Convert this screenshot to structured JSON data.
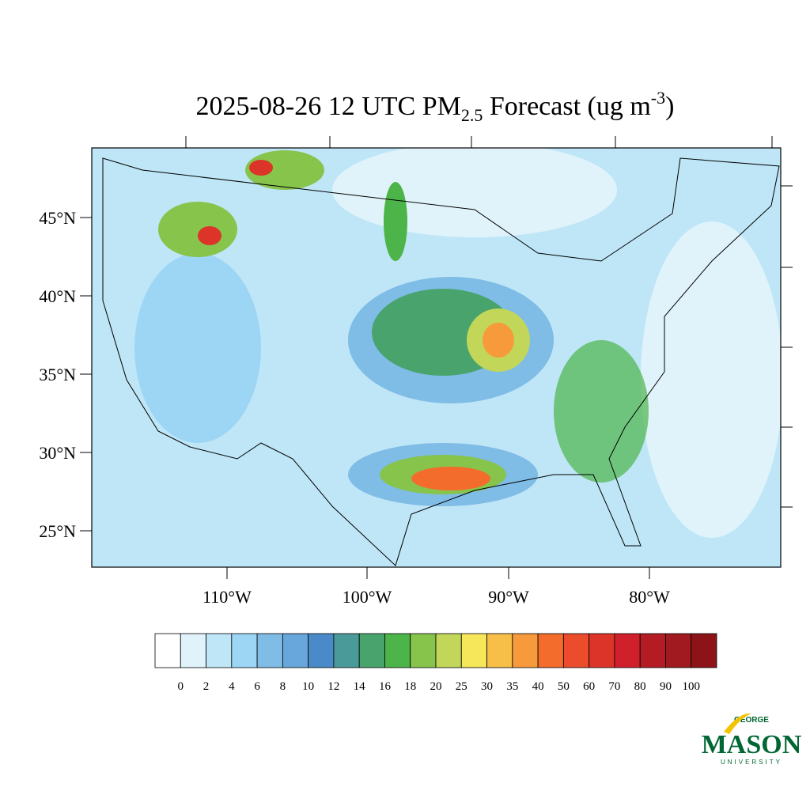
{
  "title": {
    "main": "2025-08-26 12 UTC PM",
    "sub": "2.5",
    "middle": " Forecast (ug m",
    "sup": "-3",
    "end": ")"
  },
  "lat_labels": [
    "45°N",
    "40°N",
    "35°N",
    "30°N",
    "25°N"
  ],
  "lon_labels": [
    "110°W",
    "100°W",
    "90°W",
    "80°W"
  ],
  "colorbar": {
    "labels": [
      "0",
      "2",
      "4",
      "6",
      "8",
      "10",
      "12",
      "14",
      "16",
      "18",
      "20",
      "25",
      "30",
      "35",
      "40",
      "50",
      "60",
      "70",
      "80",
      "90",
      "100"
    ],
    "colors": [
      "#ffffff",
      "#e0f3fb",
      "#bfe6f7",
      "#9dd6f5",
      "#7fbce6",
      "#67a7db",
      "#4a8ac8",
      "#4a9a9a",
      "#48a46c",
      "#4cb448",
      "#86c44c",
      "#c2d65a",
      "#f6e65a",
      "#f7bf48",
      "#f69a3c",
      "#f46c2c",
      "#ea4c2c",
      "#dc3428",
      "#d0202c",
      "#b41c24",
      "#a01a20",
      "#8c1418"
    ]
  },
  "logo": {
    "top": "GEORGE",
    "main": "MASON",
    "bottom": "UNIVERSITY"
  }
}
